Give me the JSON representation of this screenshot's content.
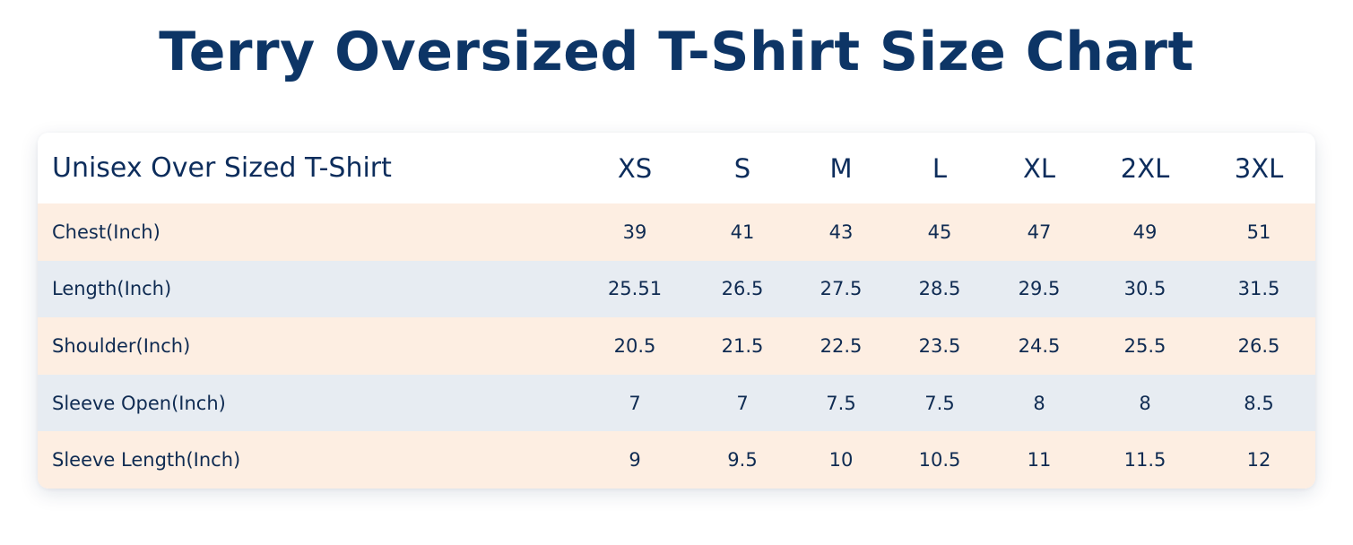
{
  "title": "Terry Oversized T-Shirt Size Chart",
  "table": {
    "header_label": "Unisex Over Sized T-Shirt",
    "sizes": [
      "XS",
      "S",
      "M",
      "L",
      "XL",
      "2XL",
      "3XL"
    ],
    "rows": [
      {
        "label": "Chest(Inch)",
        "values": [
          "39",
          "41",
          "43",
          "45",
          "47",
          "49",
          "51"
        ]
      },
      {
        "label": "Length(Inch)",
        "values": [
          "25.51",
          "26.5",
          "27.5",
          "28.5",
          "29.5",
          "30.5",
          "31.5"
        ]
      },
      {
        "label": "Shoulder(Inch)",
        "values": [
          "20.5",
          "21.5",
          "22.5",
          "23.5",
          "24.5",
          "25.5",
          "26.5"
        ]
      },
      {
        "label": "Sleeve Open(Inch)",
        "values": [
          "7",
          "7",
          "7.5",
          "7.5",
          "8",
          "8",
          "8.5"
        ]
      },
      {
        "label": "Sleeve Length(Inch)",
        "values": [
          "9",
          "9.5",
          "10",
          "10.5",
          "11",
          "11.5",
          "12"
        ]
      }
    ]
  },
  "colors": {
    "title": "#0d3566",
    "text": "#0f2b52",
    "row_peach": "#fdeee2",
    "row_grey": "#e7ecf2",
    "card_bg": "#ffffff"
  }
}
